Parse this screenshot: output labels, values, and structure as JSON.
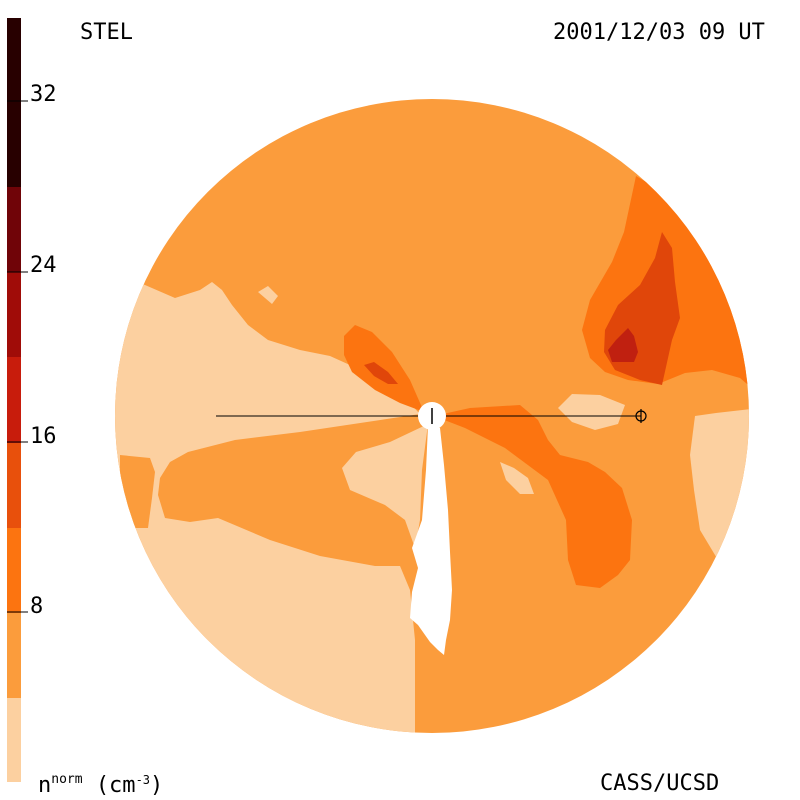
{
  "header": {
    "instrument": "STEL",
    "timestamp": "2001/12/03 09 UT"
  },
  "footer": {
    "unit_base": "n",
    "unit_sup": "norm",
    "unit_open": "(cm",
    "unit_exp": "-3",
    "unit_close": ")",
    "credit": "CASS/UCSD"
  },
  "colorbar": {
    "tick_labels": [
      "32",
      "24",
      "16",
      "8"
    ],
    "colors": [
      "#fcd0a0",
      "#fb9c3c",
      "#fc7410",
      "#e8500c",
      "#c81c0c",
      "#a00c08",
      "#700408",
      "#280000"
    ]
  },
  "map_colors": {
    "level_0": "#fcd0a0",
    "level_1": "#fb9c3c",
    "level_2": "#fc7410",
    "level_3": "#e0460a",
    "level_4": "#c02010"
  },
  "symbols": {
    "sun": "sun-symbol",
    "earth": "earth-symbol"
  }
}
